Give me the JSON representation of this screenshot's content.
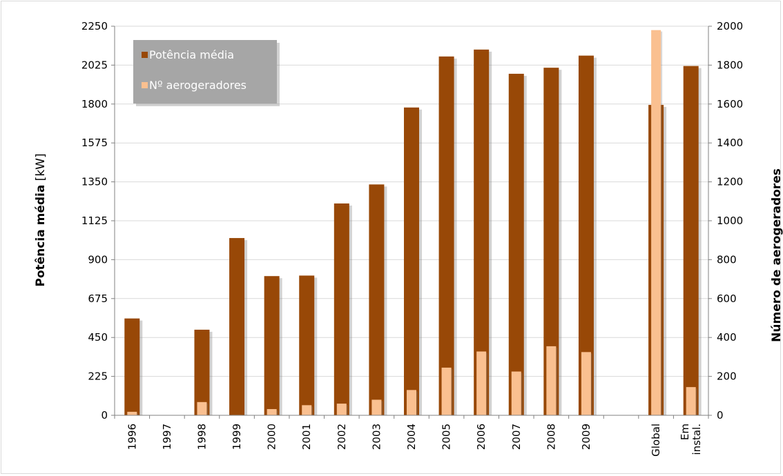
{
  "chart_data": {
    "type": "bar",
    "categories": [
      "1996",
      "1997",
      "1998",
      "1999",
      "2000",
      "2001",
      "2002",
      "2003",
      "2004",
      "2005",
      "2006",
      "2007",
      "2008",
      "2009",
      "",
      "Global",
      "Em\ninstal."
    ],
    "series": [
      {
        "name": "Potência média",
        "axis": "left",
        "color": "#984807",
        "values": [
          560,
          null,
          495,
          1025,
          805,
          808,
          1225,
          1335,
          1780,
          2075,
          2115,
          1975,
          2010,
          2080,
          null,
          1795,
          2020
        ]
      },
      {
        "name": "Nº aerogeradores",
        "axis": "right",
        "color": "#fac090",
        "values": [
          18,
          null,
          68,
          2,
          32,
          52,
          60,
          80,
          130,
          245,
          328,
          225,
          355,
          325,
          null,
          1980,
          145
        ]
      }
    ],
    "ylabel_left": {
      "bold": "Potência média",
      "unit": " [kW]"
    },
    "ylabel_right": "Número de aerogeradores",
    "ylim_left": [
      0,
      2250
    ],
    "yticks_left": [
      "0",
      "225",
      "450",
      "675",
      "900",
      "1125",
      "1350",
      "1575",
      "1800",
      "2025",
      "2250"
    ],
    "ylim_right": [
      0,
      2000
    ],
    "yticks_right": [
      "0",
      "200",
      "400",
      "600",
      "800",
      "1000",
      "1200",
      "1400",
      "1600",
      "1800",
      "2000"
    ],
    "grid": true,
    "legend_position": "top-left",
    "legend_background": "#a6a6a6"
  }
}
